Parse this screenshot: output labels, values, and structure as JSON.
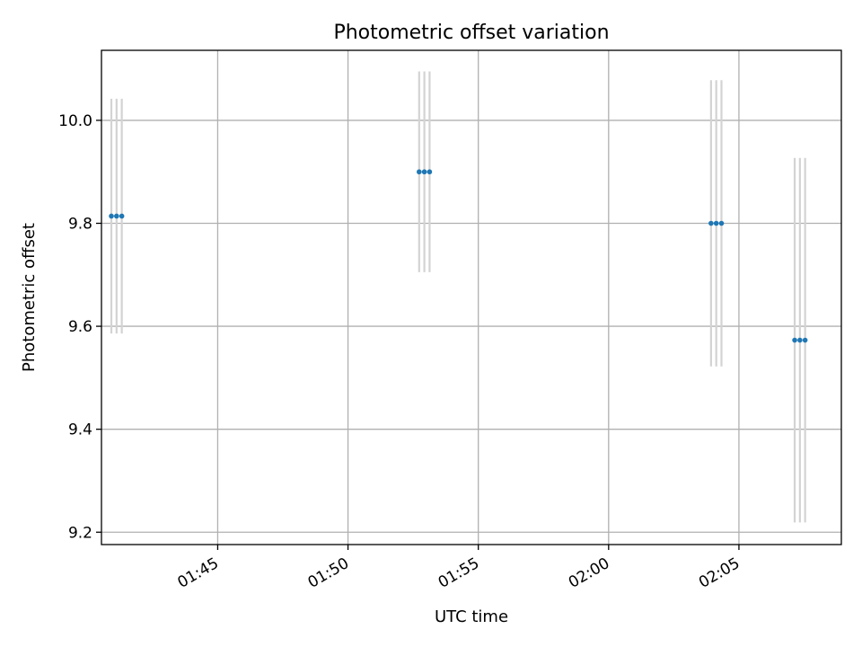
{
  "chart_data": {
    "type": "scatter",
    "title": "Photometric offset variation",
    "xlabel": "UTC time",
    "ylabel": "Photometric offset",
    "x_tick_labels": [
      {
        "label": "01:45",
        "minutes": 105
      },
      {
        "label": "01:50",
        "minutes": 110
      },
      {
        "label": "01:55",
        "minutes": 115
      },
      {
        "label": "02:00",
        "minutes": 120
      },
      {
        "label": "02:05",
        "minutes": 125
      }
    ],
    "y_tick_labels": [
      {
        "label": "9.2",
        "value": 9.2
      },
      {
        "label": "9.4",
        "value": 9.4
      },
      {
        "label": "9.6",
        "value": 9.6
      },
      {
        "label": "9.8",
        "value": 9.8
      },
      {
        "label": "10.0",
        "value": 10.0
      }
    ],
    "xlim_minutes": [
      100.54,
      128.93
    ],
    "ylim": [
      9.176,
      10.136
    ],
    "grid": true,
    "groups": [
      {
        "times_minutes": [
          100.92,
          101.12,
          101.32
        ],
        "y": 9.814,
        "yerr": 0.228
      },
      {
        "times_minutes": [
          112.73,
          112.93,
          113.13
        ],
        "y": 9.9,
        "yerr": 0.195
      },
      {
        "times_minutes": [
          123.93,
          124.13,
          124.33
        ],
        "y": 9.8,
        "yerr": 0.278
      },
      {
        "times_minutes": [
          127.14,
          127.34,
          127.54
        ],
        "y": 9.573,
        "yerr": 0.354
      }
    ]
  }
}
